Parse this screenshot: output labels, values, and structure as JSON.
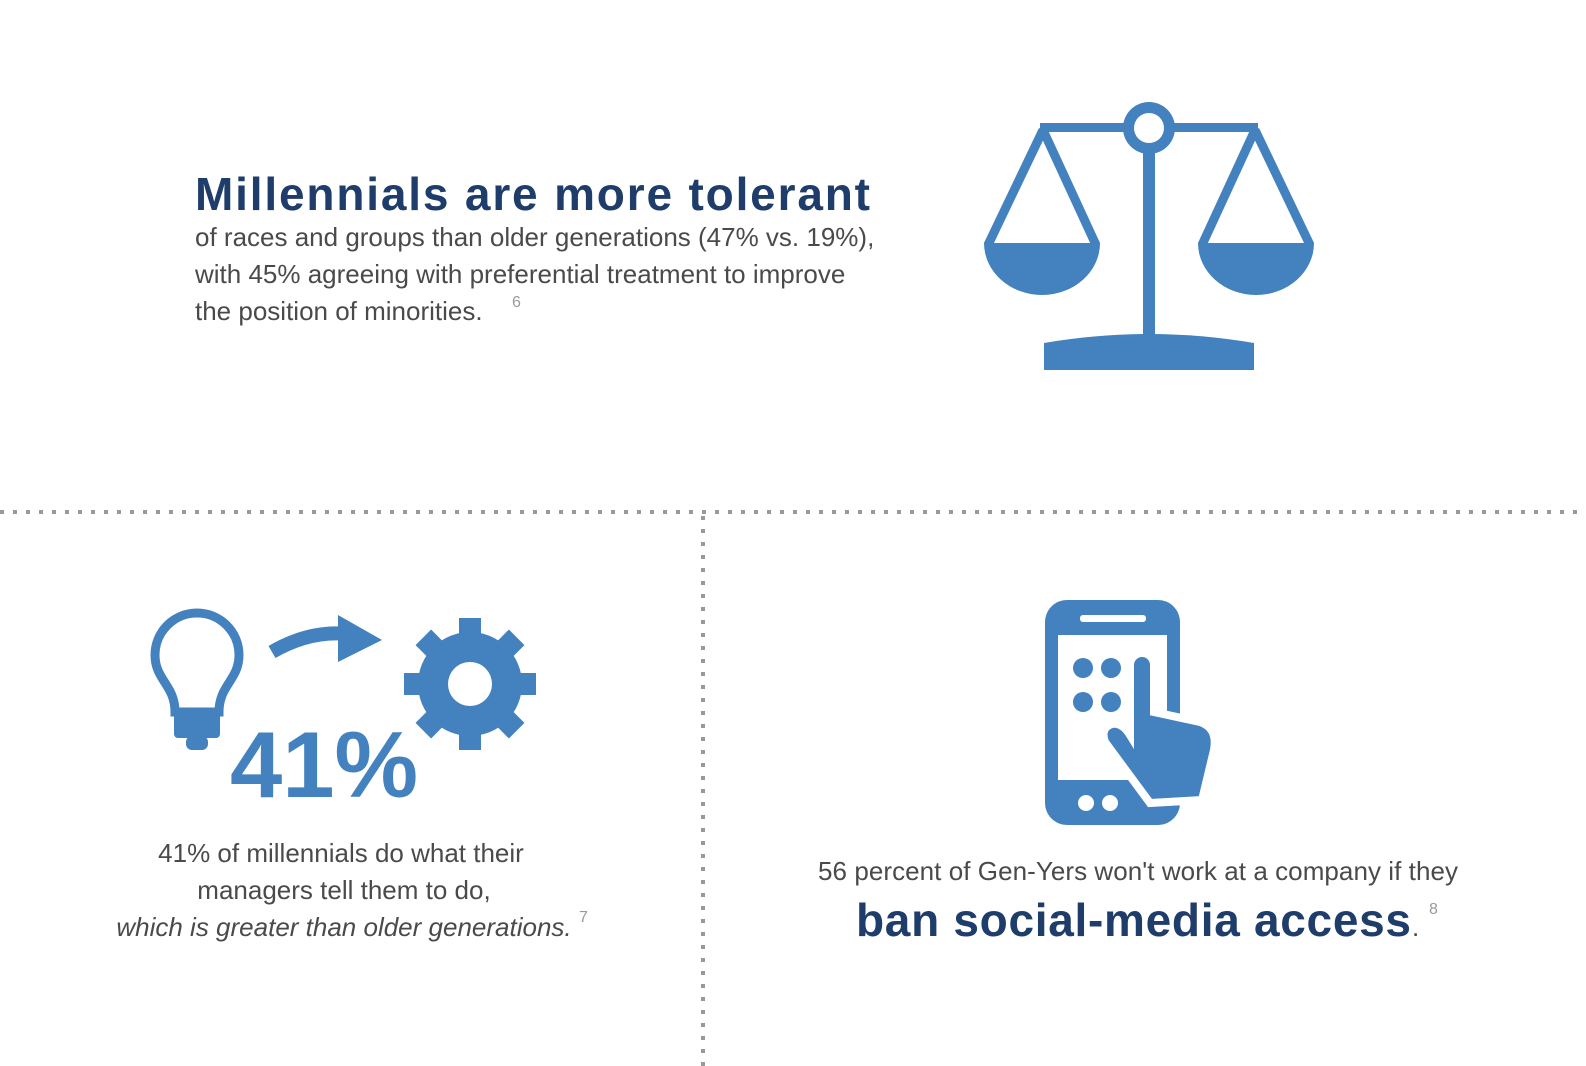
{
  "top": {
    "title": "Millennials are more tolerant",
    "lines": [
      "of races and groups than older generations (47% vs. 19%),",
      "with 45% agreeing with preferential treatment to improve",
      "the position of minorities."
    ],
    "footnote": "6"
  },
  "left": {
    "big": "41%",
    "lines": [
      "41% of millennials do what their",
      "managers tell them to do,"
    ],
    "italic": "which is greater than older generations.",
    "footnote": "7"
  },
  "right": {
    "line": "56 percent of Gen-Yers won't work at a company if they",
    "emphasis": "ban social-media access",
    "period": ".",
    "footnote": "8"
  }
}
